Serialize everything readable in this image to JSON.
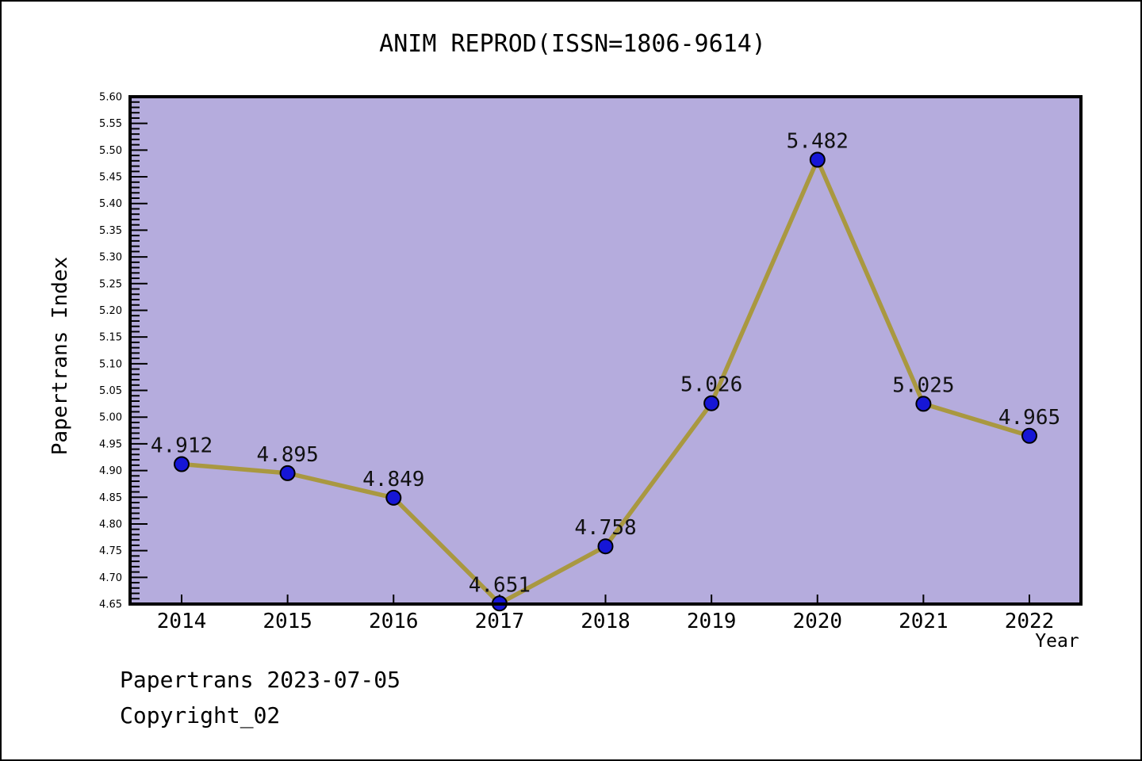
{
  "window": {
    "background": "#ffffff",
    "border_color": "#000000"
  },
  "chart_data": {
    "type": "line",
    "title": "ANIM REPROD(ISSN=1806-9614)",
    "xlabel": "Year",
    "ylabel": "Papertrans Index",
    "categories": [
      2014,
      2015,
      2016,
      2017,
      2018,
      2019,
      2020,
      2021,
      2022
    ],
    "series": [
      {
        "name": "Papertrans Index",
        "values": [
          4.912,
          4.895,
          4.849,
          4.651,
          4.758,
          5.026,
          5.482,
          5.025,
          4.965
        ]
      }
    ],
    "point_labels": [
      "4.912",
      "4.895",
      "4.849",
      "4.651",
      "4.758",
      "5.026",
      "5.482",
      "5.025",
      "4.965"
    ],
    "ylim": [
      4.65,
      5.6
    ],
    "y_major_step": 0.05,
    "y_minor_step": 0.01,
    "grid": "off",
    "legend": "none",
    "colors": {
      "plot_background": "#b5acdd",
      "line": "#a99840",
      "marker_fill": "#1616d6",
      "marker_edge": "#000000",
      "axis": "#000000",
      "label_text": "#111111"
    }
  },
  "footer": {
    "line1": "Papertrans 2023-07-05",
    "line2": "Copyright_02"
  }
}
